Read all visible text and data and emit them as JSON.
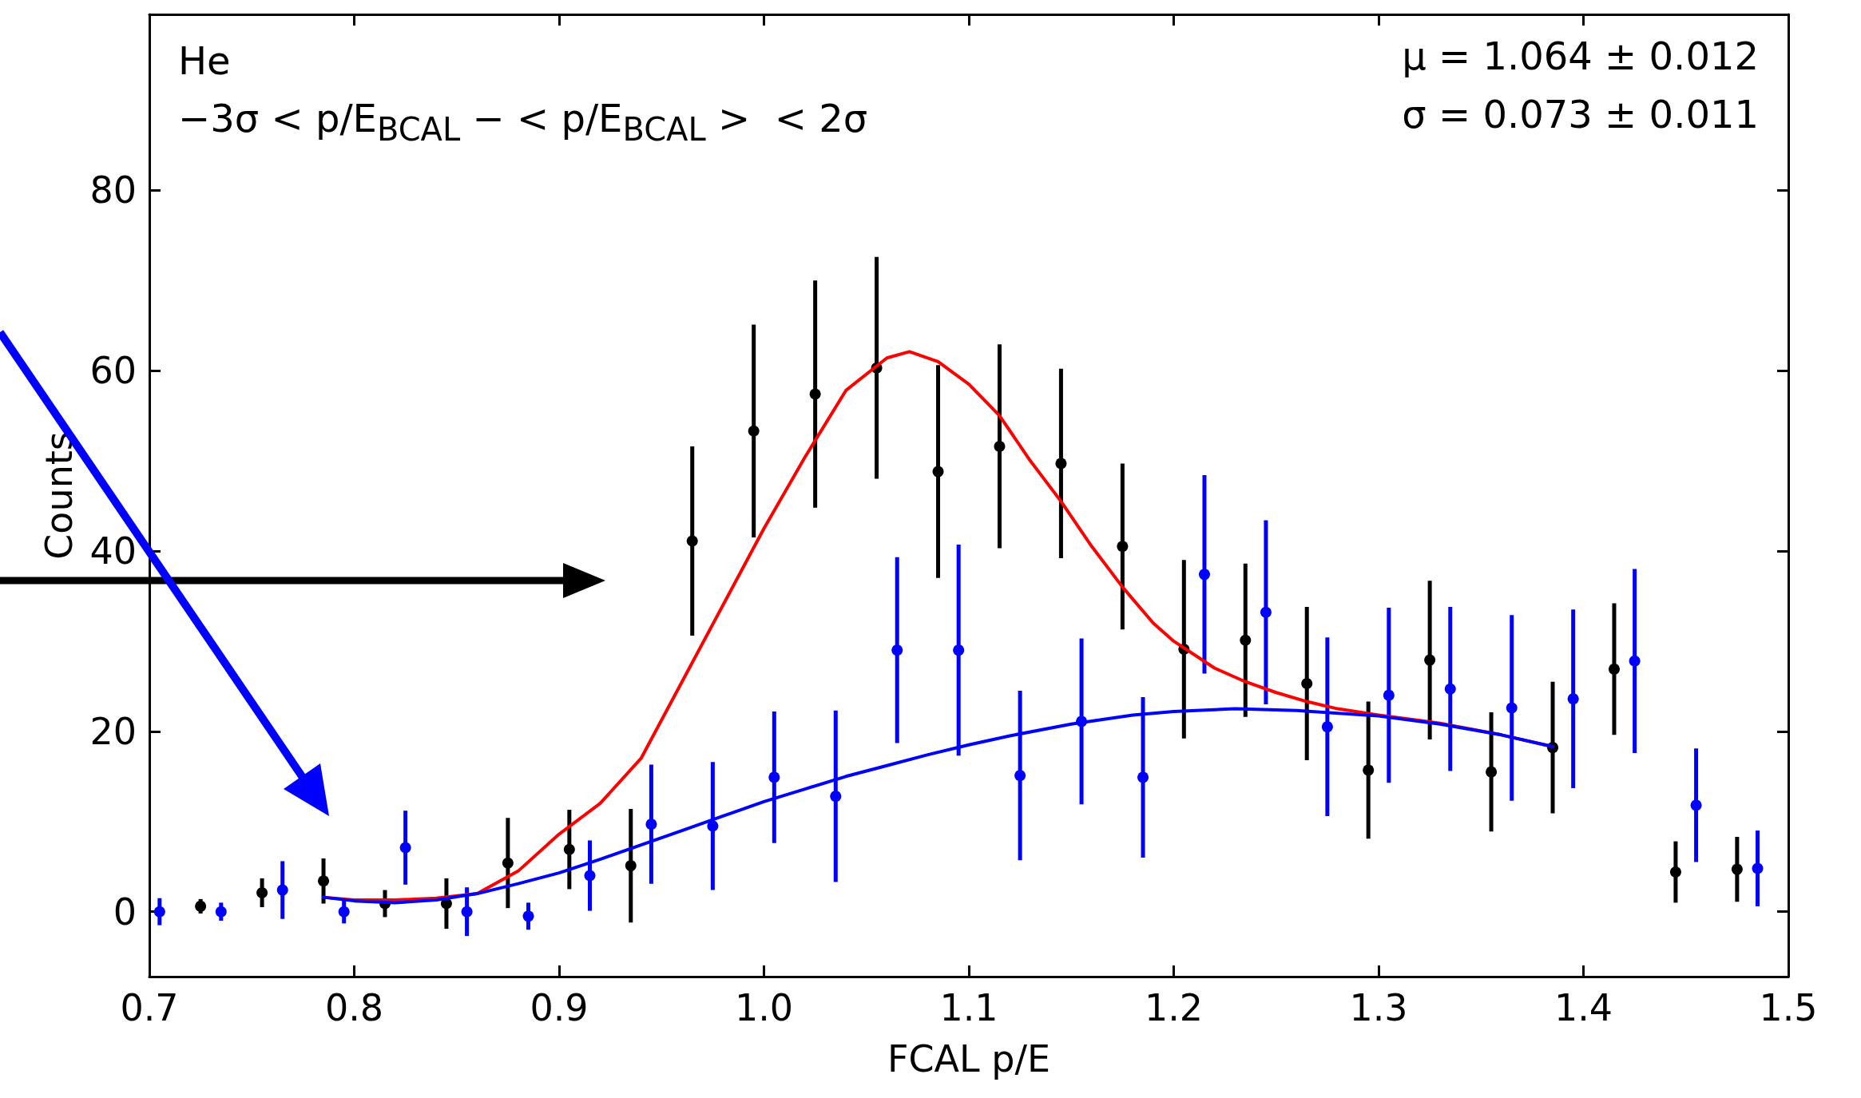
{
  "chart_data": {
    "type": "scatter",
    "xlabel": "FCAL p/E",
    "ylabel": "Counts",
    "annotations": [
      "He",
      "−3σ < p/E$_{BCAL}$ − < p/E$_{BCAL}$ >  < 2σ",
      "μ = 1.064 ± 0.012",
      "σ = 0.073 ± 0.011"
    ],
    "xlim": [
      0.7,
      1.5
    ],
    "xticks": [
      0.7,
      0.8,
      0.9,
      {
        "value": 1.0,
        "label": "1.0"
      },
      1.1,
      1.2,
      1.3,
      1.4,
      1.5
    ],
    "ylim": [
      -7.2,
      99.5
    ],
    "yticks": [
      0,
      20,
      40,
      60,
      80
    ],
    "marker": "circle",
    "series": [
      {
        "color": "#000000",
        "x": [
          0.725,
          0.755,
          0.785,
          0.815,
          0.845,
          0.875,
          0.905,
          0.935,
          0.965,
          0.995,
          1.025,
          1.055,
          1.085,
          1.115,
          1.145,
          1.175,
          1.205,
          1.235,
          1.265,
          1.295,
          1.325,
          1.355,
          1.385,
          1.415,
          1.445,
          1.475
        ],
        "values": [
          0.6,
          2.1,
          3.4,
          0.9,
          0.9,
          5.4,
          6.9,
          5.1,
          41.1,
          53.3,
          57.4,
          60.3,
          48.8,
          51.6,
          49.7,
          40.5,
          29.1,
          30.1,
          25.3,
          15.7,
          27.9,
          15.5,
          18.2,
          26.9,
          4.4,
          4.7
        ],
        "errors": [
          0.8,
          1.6,
          2.5,
          1.5,
          2.8,
          5,
          4.4,
          6.3,
          10.5,
          11.8,
          12.6,
          12.3,
          11.8,
          11.3,
          10.5,
          9.2,
          9.9,
          8.5,
          8.5,
          7.6,
          8.8,
          6.6,
          7.3,
          7.3,
          3.4,
          3.6
        ]
      },
      {
        "color": "#0000ff",
        "x": [
          0.705,
          0.735,
          0.765,
          0.795,
          0.825,
          0.855,
          0.885,
          0.915,
          0.945,
          0.975,
          1.005,
          1.035,
          1.065,
          1.095,
          1.125,
          1.155,
          1.185,
          1.215,
          1.245,
          1.275,
          1.305,
          1.335,
          1.365,
          1.395,
          1.425,
          1.455,
          1.485
        ],
        "values": [
          0,
          0,
          2.4,
          0,
          7.1,
          0,
          -0.5,
          4.0,
          9.7,
          9.5,
          14.9,
          12.8,
          29,
          29,
          15.1,
          21.1,
          14.9,
          37.4,
          33.2,
          20.5,
          24,
          24.7,
          22.6,
          23.6,
          27.8,
          11.8,
          4.8
        ],
        "errors": [
          1.5,
          1,
          3.2,
          1.3,
          4.1,
          2.7,
          1.5,
          3.9,
          6.6,
          7.1,
          7.3,
          9.5,
          10.3,
          11.7,
          9.4,
          9.2,
          8.9,
          11,
          10.2,
          9.9,
          9.7,
          9.1,
          10.3,
          9.9,
          10.2,
          6.3,
          4.2
        ]
      },
      {
        "type": "line",
        "color": "#ff0000",
        "marker": "none",
        "x": [
          0.785,
          0.8,
          0.82,
          0.84,
          0.86,
          0.88,
          0.9,
          0.92,
          0.94,
          0.96,
          0.98,
          1.0,
          1.02,
          1.04,
          1.06,
          1.071,
          1.085,
          1.1,
          1.115,
          1.13,
          1.145,
          1.16,
          1.175,
          1.19,
          1.2,
          1.22,
          1.235,
          1.25,
          1.265,
          1.28,
          1.3,
          1.33,
          1.36,
          1.385
        ],
        "values": [
          1.6,
          1.3,
          1.3,
          1.5,
          2,
          4.5,
          8.6,
          12,
          17,
          25.5,
          34,
          42.5,
          50.4,
          57.8,
          61.4,
          62.1,
          61,
          58.5,
          55,
          50,
          45.5,
          40.5,
          36,
          32,
          30,
          27,
          25.5,
          24.3,
          23.3,
          22.5,
          21.8,
          20.9,
          19.6,
          18.3
        ]
      },
      {
        "type": "line",
        "color": "#0000ff",
        "marker": "none",
        "x": [
          0.785,
          0.8,
          0.82,
          0.84,
          0.86,
          0.88,
          0.9,
          0.92,
          0.94,
          0.96,
          0.98,
          1.0,
          1.02,
          1.04,
          1.06,
          1.08,
          1.1,
          1.12,
          1.15,
          1.18,
          1.2,
          1.23,
          1.26,
          1.3,
          1.33,
          1.36,
          1.385
        ],
        "values": [
          1.6,
          1.2,
          1.0,
          1.3,
          2.0,
          3.1,
          4.3,
          5.8,
          7.4,
          9.0,
          10.6,
          12.2,
          13.6,
          15.0,
          16.2,
          17.4,
          18.5,
          19.5,
          20.8,
          21.8,
          22.2,
          22.5,
          22.3,
          21.7,
          20.8,
          19.6,
          18.3
        ]
      }
    ]
  }
}
